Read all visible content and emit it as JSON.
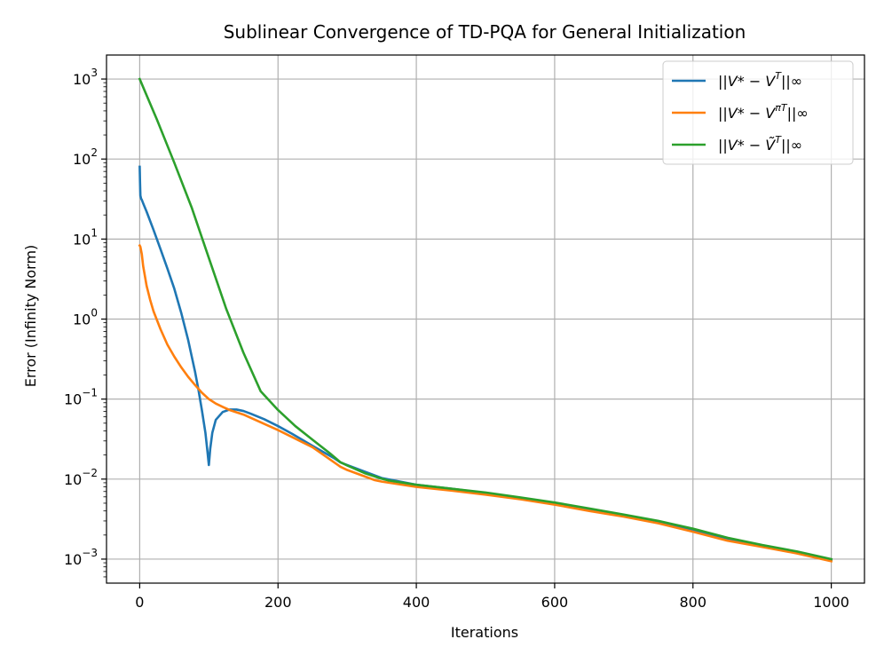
{
  "chart_data": {
    "type": "line",
    "title": "Sublinear Convergence of TD-PQA for General Initialization",
    "xlabel": "Iterations",
    "ylabel": "Error (Infinity Norm)",
    "xlim": [
      -48,
      1048
    ],
    "ylim_log10": [
      -3.3,
      3.3
    ],
    "yscale": "log",
    "grid": true,
    "legend_position": "top-right",
    "x_ticks": [
      0,
      200,
      400,
      600,
      800,
      1000
    ],
    "y_ticks": [
      {
        "exp": 3,
        "label_base": "10",
        "label_exp": "3"
      },
      {
        "exp": 2,
        "label_base": "10",
        "label_exp": "2"
      },
      {
        "exp": 1,
        "label_base": "10",
        "label_exp": "1"
      },
      {
        "exp": 0,
        "label_base": "10",
        "label_exp": "0"
      },
      {
        "exp": -1,
        "label_base": "10",
        "label_exp": "−1"
      },
      {
        "exp": -2,
        "label_base": "10",
        "label_exp": "−2"
      },
      {
        "exp": -3,
        "label_base": "10",
        "label_exp": "−3"
      }
    ],
    "series": [
      {
        "name": "||V* − V^T||∞",
        "legend_main": "||V* − V",
        "legend_sup": "T",
        "legend_tail": "||∞",
        "color": "#1f77b4",
        "x": [
          0,
          0.5,
          1,
          2,
          3,
          5,
          10,
          20,
          30,
          40,
          50,
          60,
          70,
          80,
          85,
          90,
          95,
          98,
          100,
          102,
          105,
          110,
          120,
          130,
          140,
          150,
          160,
          180,
          200,
          220,
          250,
          280,
          290,
          300,
          350,
          400,
          450,
          500,
          550,
          600,
          650,
          700,
          750,
          800,
          850,
          900,
          950,
          1000
        ],
        "y": [
          80,
          50,
          35,
          32,
          31,
          28,
          22,
          13,
          7.5,
          4.3,
          2.4,
          1.2,
          0.55,
          0.22,
          0.13,
          0.072,
          0.038,
          0.022,
          0.015,
          0.024,
          0.038,
          0.055,
          0.069,
          0.074,
          0.074,
          0.071,
          0.066,
          0.056,
          0.046,
          0.037,
          0.026,
          0.0185,
          0.0162,
          0.015,
          0.0103,
          0.0085,
          0.0076,
          0.0067,
          0.0058,
          0.005,
          0.0042,
          0.0035,
          0.0029,
          0.0023,
          0.00175,
          0.00145,
          0.00122,
          0.00098
        ]
      },
      {
        "name": "||V* − V^{π_T}||∞",
        "legend_main": "||V* − V",
        "legend_sup": "πT",
        "legend_tail": "||∞",
        "color": "#ff7f0e",
        "x": [
          0,
          1,
          3,
          5,
          10,
          15,
          20,
          30,
          40,
          50,
          60,
          70,
          80,
          90,
          100,
          110,
          120,
          130,
          150,
          200,
          250,
          290,
          300,
          340,
          350,
          400,
          450,
          500,
          550,
          600,
          650,
          700,
          750,
          800,
          850,
          900,
          950,
          1000
        ],
        "y": [
          8.3,
          8.0,
          6.5,
          4.6,
          2.6,
          1.75,
          1.25,
          0.75,
          0.48,
          0.34,
          0.25,
          0.19,
          0.15,
          0.12,
          0.1,
          0.088,
          0.08,
          0.073,
          0.064,
          0.041,
          0.025,
          0.0143,
          0.013,
          0.0097,
          0.0093,
          0.008,
          0.0072,
          0.0064,
          0.0056,
          0.0048,
          0.004,
          0.0034,
          0.0028,
          0.0022,
          0.0017,
          0.00142,
          0.00118,
          0.00094
        ]
      },
      {
        "name": "||V* − Ṽ^T||∞",
        "legend_main": "||V* − Ṽ",
        "legend_sup": "T",
        "legend_tail": "||∞",
        "color": "#2ca02c",
        "x": [
          0,
          25,
          50,
          75,
          100,
          125,
          150,
          175,
          200,
          225,
          250,
          275,
          290,
          300,
          325,
          350,
          360,
          400,
          450,
          500,
          550,
          600,
          650,
          700,
          750,
          800,
          850,
          900,
          950,
          1000
        ],
        "y": [
          1000,
          310,
          90,
          25,
          5.8,
          1.35,
          0.38,
          0.125,
          0.073,
          0.046,
          0.031,
          0.021,
          0.0163,
          0.0148,
          0.0119,
          0.0101,
          0.0096,
          0.0085,
          0.0076,
          0.0068,
          0.0059,
          0.0051,
          0.0043,
          0.0036,
          0.003,
          0.0024,
          0.00185,
          0.0015,
          0.00125,
          0.001
        ]
      }
    ]
  }
}
